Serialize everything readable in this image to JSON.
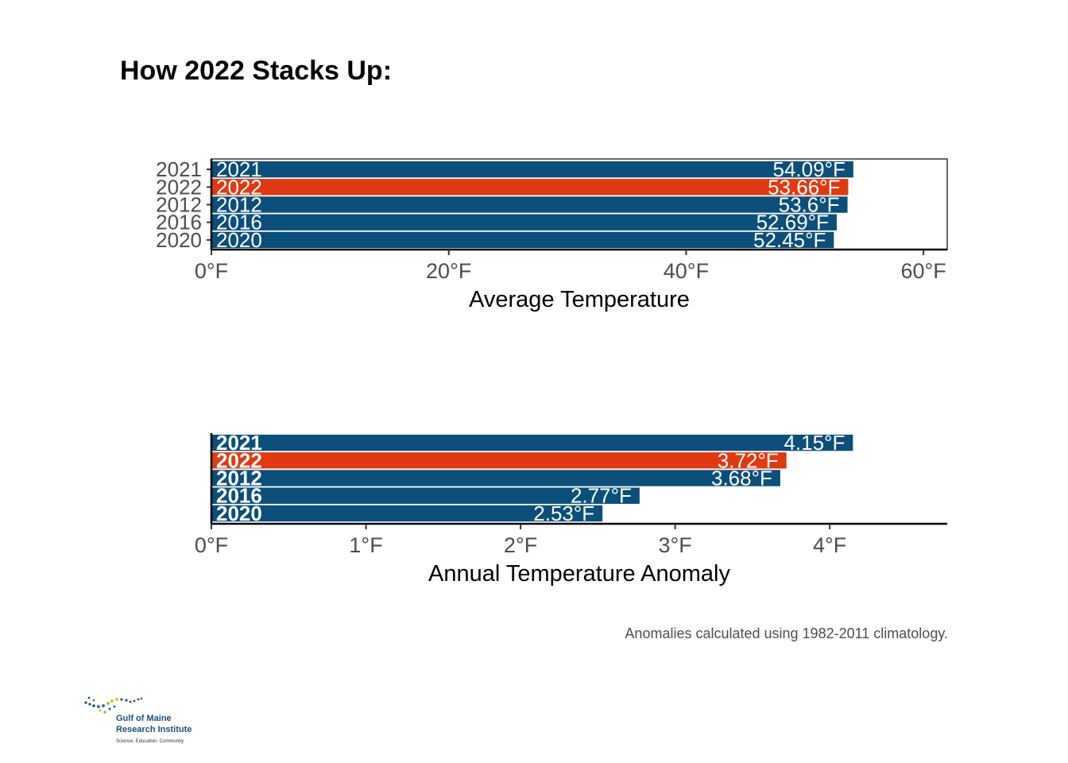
{
  "title": "How 2022 Stacks Up:",
  "caption": "Anomalies calculated using 1982-2011 climatology.",
  "logo": {
    "line1": "Gulf of Maine",
    "line2": "Research Institute",
    "tagline": "Science. Education. Community."
  },
  "colors": {
    "bar": "#0b4f7a",
    "highlight": "#e03a12",
    "text_on_bar": "#ffffff"
  },
  "chart_data": [
    {
      "type": "bar",
      "orientation": "horizontal",
      "categories": [
        "2021",
        "2022",
        "2012",
        "2016",
        "2020"
      ],
      "values": [
        54.09,
        53.66,
        53.6,
        52.69,
        52.45
      ],
      "value_labels": [
        "54.09°F",
        "53.66°F",
        "53.6°F",
        "52.69°F",
        "52.45°F"
      ],
      "highlight": "2022",
      "xlabel": "Average Temperature",
      "xlim": [
        0,
        62
      ],
      "xticks": [
        0,
        20,
        40,
        60
      ],
      "xtick_labels": [
        "0°F",
        "20°F",
        "40°F",
        "60°F"
      ],
      "show_y_ticks": true,
      "bordered_panel": true
    },
    {
      "type": "bar",
      "orientation": "horizontal",
      "categories": [
        "2021",
        "2022",
        "2012",
        "2016",
        "2020"
      ],
      "values": [
        4.15,
        3.72,
        3.68,
        2.77,
        2.53
      ],
      "value_labels": [
        "4.15°F",
        "3.72°F",
        "3.68°F",
        "2.77°F",
        "2.53°F"
      ],
      "highlight": "2022",
      "xlabel": "Annual Temperature Anomaly",
      "xlim": [
        0,
        4.76
      ],
      "xticks": [
        0,
        1,
        2,
        3,
        4
      ],
      "xtick_labels": [
        "0°F",
        "1°F",
        "2°F",
        "3°F",
        "4°F"
      ],
      "show_y_ticks": false,
      "bordered_panel": false
    }
  ]
}
